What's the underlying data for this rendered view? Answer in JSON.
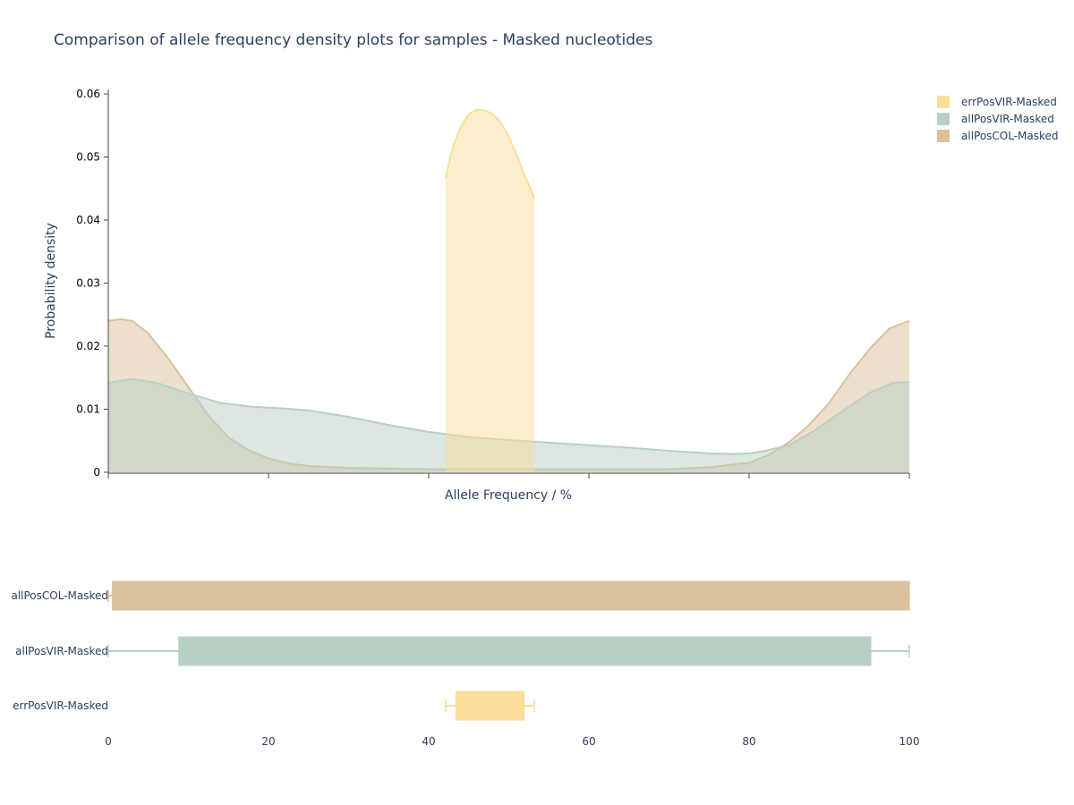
{
  "chart_data": {
    "type": "area",
    "title": "Comparison of allele frequency density plots for samples - Masked nucleotides",
    "xlabel": "Allele Frequency / %",
    "ylabel": "Probability density",
    "xlim": [
      0,
      100
    ],
    "ylim": [
      0,
      0.06
    ],
    "grid": false,
    "legend_position": "top-right",
    "density": {
      "y_ticks": [
        "0",
        "0.01",
        "0.02",
        "0.03",
        "0.04",
        "0.05",
        "0.06"
      ],
      "y_tick_values": [
        0,
        0.01,
        0.02,
        0.03,
        0.04,
        0.05,
        0.06
      ],
      "x_tick_values": [
        0,
        20,
        40,
        60,
        80,
        100
      ],
      "series": [
        {
          "name": "allPosCOL-Masked",
          "color": "#d9c19b",
          "x": [
            0,
            1.5,
            3,
            5,
            7.5,
            10,
            12.5,
            15,
            17.5,
            20,
            22.5,
            25,
            30,
            40,
            50,
            60,
            70,
            75,
            80,
            82.5,
            85,
            87.5,
            90,
            92.5,
            95,
            97.5,
            100
          ],
          "y": [
            0.024,
            0.0243,
            0.024,
            0.022,
            0.018,
            0.0135,
            0.009,
            0.0055,
            0.0035,
            0.0022,
            0.0014,
            0.001,
            0.0007,
            0.0005,
            0.0005,
            0.0005,
            0.0005,
            0.0008,
            0.0015,
            0.0028,
            0.0048,
            0.0075,
            0.011,
            0.0155,
            0.0195,
            0.0228,
            0.024
          ]
        },
        {
          "name": "allPosVIR-Masked",
          "color": "#b8d0c2",
          "x": [
            0,
            3,
            6,
            10,
            14,
            18,
            22,
            25,
            30,
            35,
            40,
            45,
            50,
            55,
            60,
            65,
            70,
            75,
            78,
            80,
            82,
            85,
            88,
            92,
            95,
            98,
            100
          ],
          "y": [
            0.0142,
            0.0148,
            0.0142,
            0.0125,
            0.011,
            0.0104,
            0.0101,
            0.0098,
            0.0088,
            0.0075,
            0.0064,
            0.0056,
            0.0051,
            0.0047,
            0.0043,
            0.0039,
            0.0034,
            0.003,
            0.0029,
            0.003,
            0.0034,
            0.0043,
            0.0065,
            0.01,
            0.0126,
            0.0142,
            0.0143
          ]
        },
        {
          "name": "errPosVIR-Masked",
          "color": "#fadd99",
          "x": [
            42.1,
            43,
            44,
            45,
            46,
            47,
            48,
            49,
            50,
            51,
            52,
            53.2
          ],
          "y": [
            0.0467,
            0.0515,
            0.0548,
            0.0568,
            0.0575,
            0.0574,
            0.0568,
            0.0555,
            0.0532,
            0.0502,
            0.047,
            0.0435
          ]
        }
      ]
    },
    "boxplot": {
      "x_ticks": [
        "0",
        "20",
        "40",
        "60",
        "80",
        "100"
      ],
      "x_tick_values": [
        0,
        20,
        40,
        60,
        80,
        100
      ],
      "series": [
        {
          "name": "allPosCOL-Masked",
          "color": "#d9c19b",
          "min": 0,
          "q1": 0.5,
          "q3": 100,
          "max": 100
        },
        {
          "name": "allPosVIR-Masked",
          "color": "#b8d0c2",
          "min": 0,
          "q1": 8.8,
          "q3": 95.2,
          "max": 100
        },
        {
          "name": "errPosVIR-Masked",
          "color": "#fadd99",
          "min": 42.1,
          "q1": 43.4,
          "q3": 51.9,
          "max": 53.2
        }
      ]
    },
    "legend": [
      {
        "label": "errPosVIR-Masked",
        "color": "#fadd99"
      },
      {
        "label": "allPosVIR-Masked",
        "color": "#b8d0c2"
      },
      {
        "label": "allPosCOL-Masked",
        "color": "#d9c19b"
      }
    ]
  }
}
